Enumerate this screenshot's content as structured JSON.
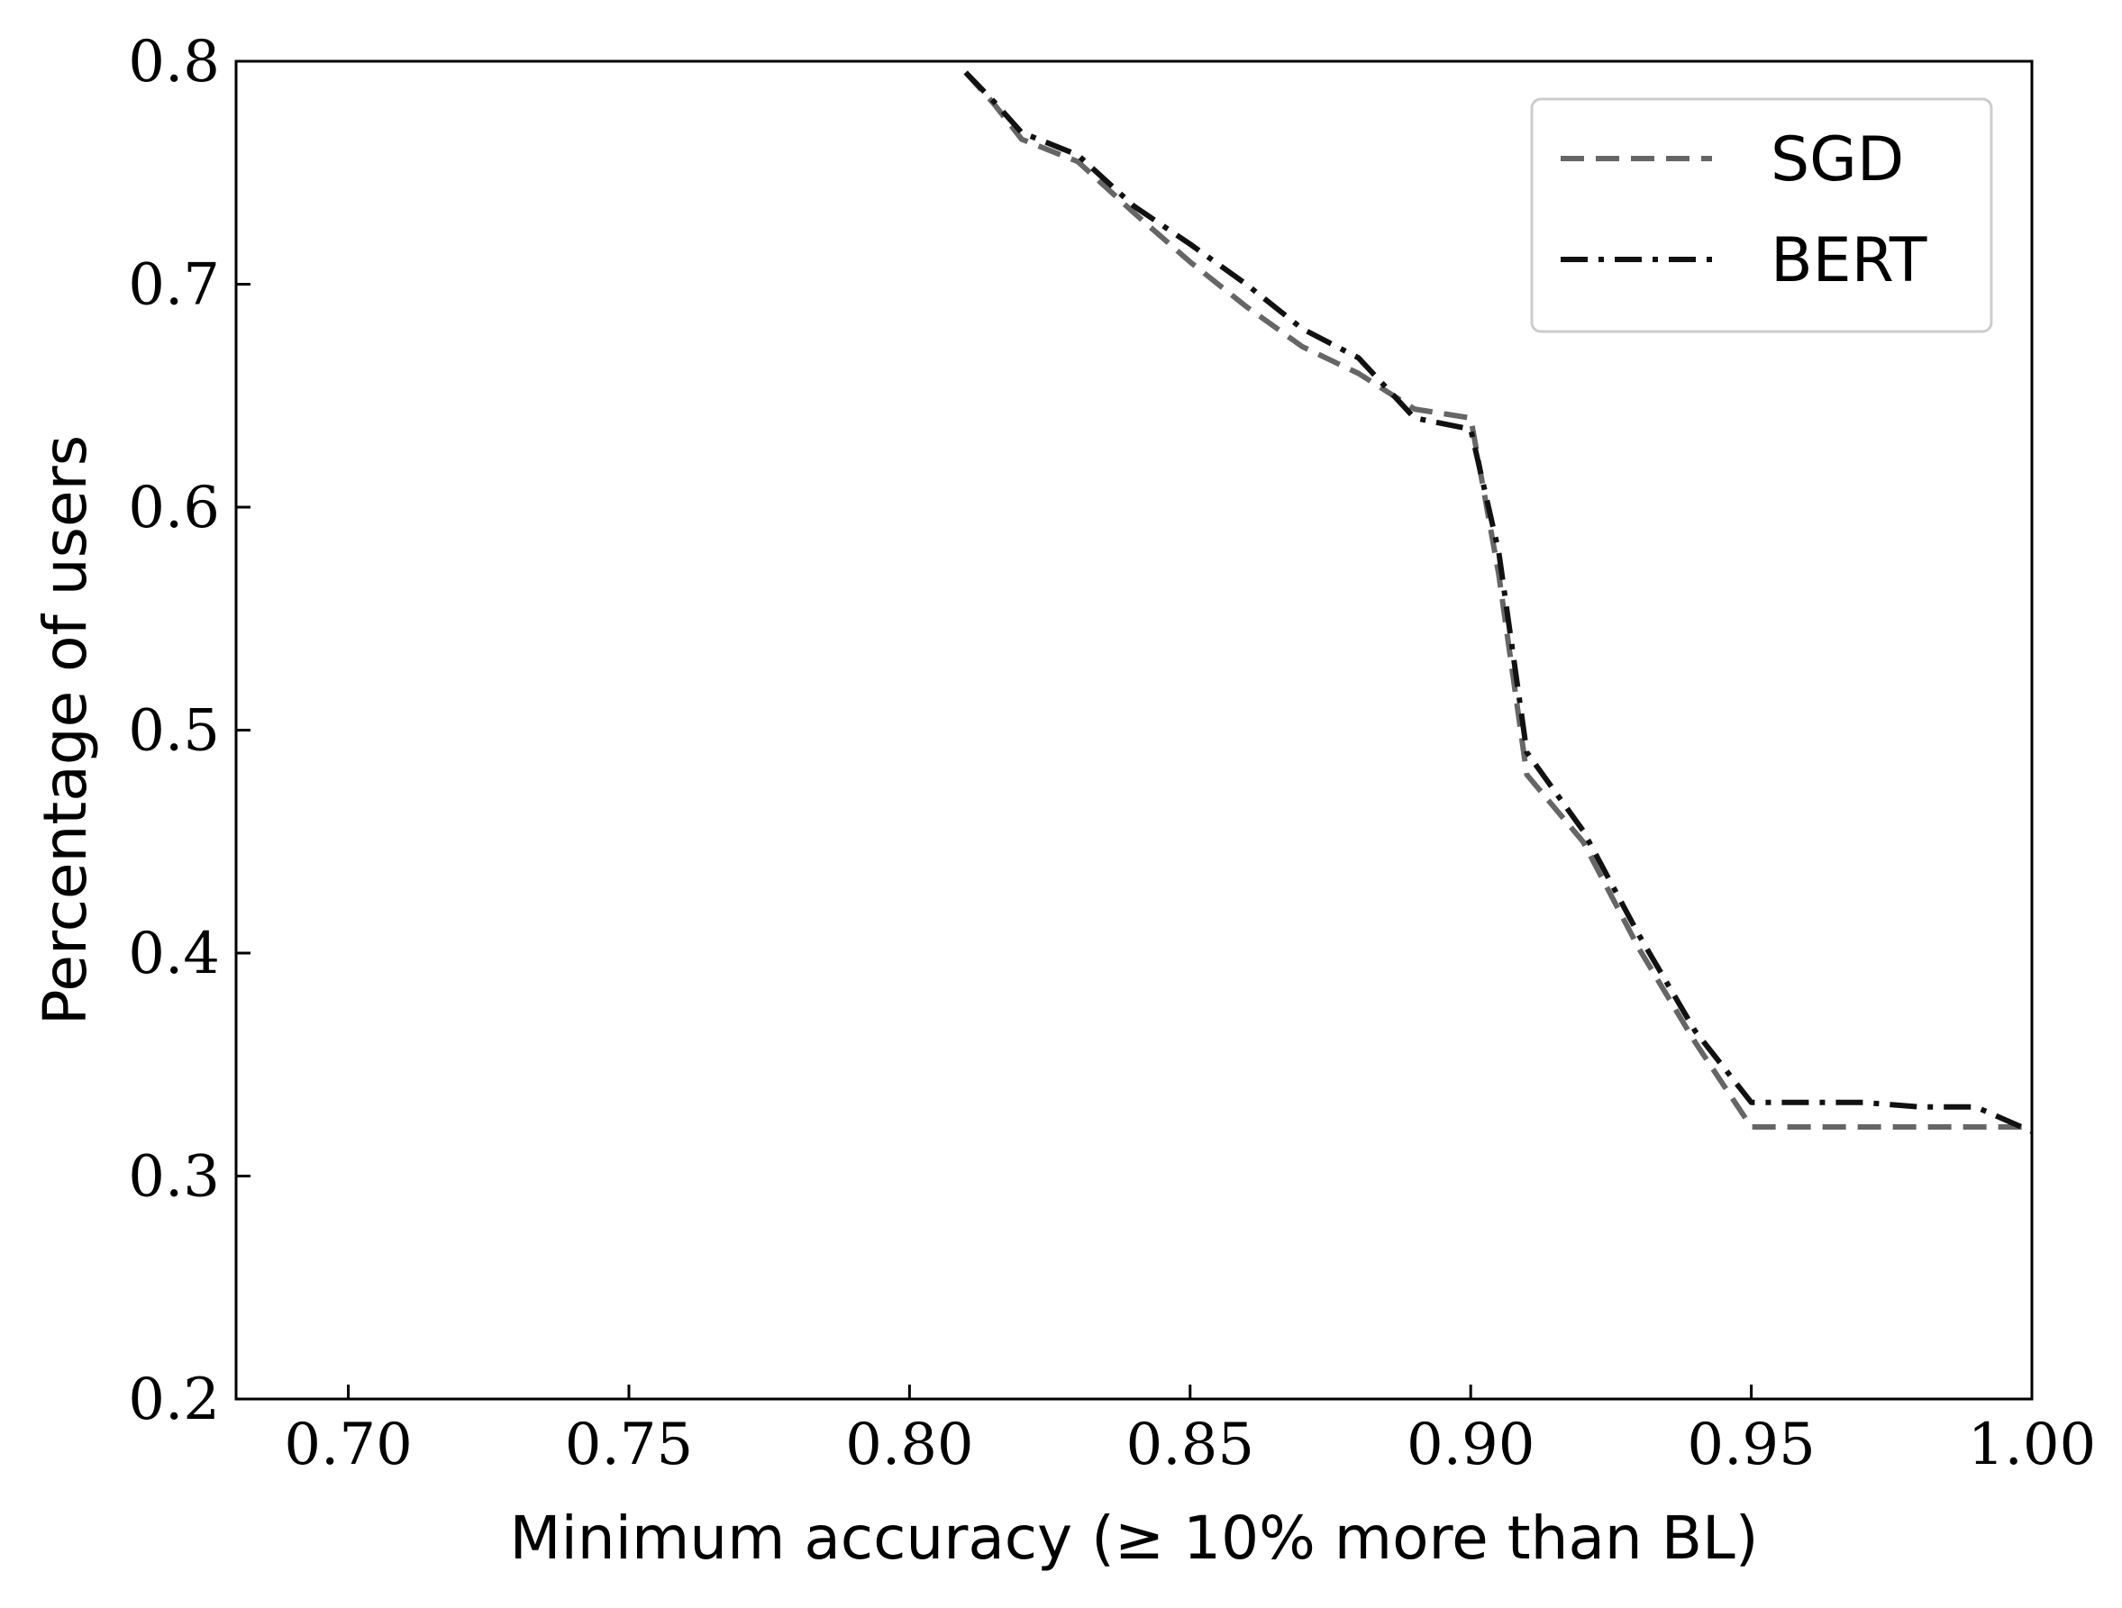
{
  "chart_data": {
    "type": "line",
    "xlabel": "Minimum accuracy (≥ 10% more than BL)",
    "ylabel": "Percentage of users",
    "xlim": [
      0.68,
      1.0
    ],
    "ylim": [
      0.2,
      0.8
    ],
    "xticks": [
      "0.70",
      "0.75",
      "0.80",
      "0.85",
      "0.90",
      "0.95",
      "1.00"
    ],
    "yticks": [
      "0.2",
      "0.3",
      "0.4",
      "0.5",
      "0.6",
      "0.7",
      "0.8"
    ],
    "legend_position": "top-right",
    "grid": false,
    "series": [
      {
        "name": "SGD",
        "color": "#666666",
        "style": "dashed",
        "x": [
          0.81,
          0.815,
          0.82,
          0.83,
          0.84,
          0.85,
          0.86,
          0.87,
          0.88,
          0.89,
          0.9,
          0.905,
          0.91,
          0.92,
          0.93,
          0.94,
          0.95,
          0.96,
          0.97,
          0.98,
          0.99,
          1.0
        ],
        "y": [
          0.795,
          0.781,
          0.765,
          0.755,
          0.732,
          0.71,
          0.69,
          0.672,
          0.66,
          0.644,
          0.64,
          0.57,
          0.48,
          0.45,
          0.402,
          0.36,
          0.322,
          0.322,
          0.322,
          0.322,
          0.322,
          0.322
        ]
      },
      {
        "name": "BERT",
        "color": "#111111",
        "style": "dashdot",
        "x": [
          0.81,
          0.815,
          0.82,
          0.83,
          0.84,
          0.85,
          0.86,
          0.87,
          0.88,
          0.89,
          0.9,
          0.905,
          0.91,
          0.92,
          0.93,
          0.94,
          0.95,
          0.96,
          0.97,
          0.98,
          0.99,
          1.0
        ],
        "y": [
          0.795,
          0.782,
          0.768,
          0.758,
          0.735,
          0.718,
          0.7,
          0.68,
          0.667,
          0.64,
          0.635,
          0.58,
          0.49,
          0.455,
          0.408,
          0.365,
          0.333,
          0.333,
          0.333,
          0.331,
          0.331,
          0.32
        ]
      }
    ]
  }
}
